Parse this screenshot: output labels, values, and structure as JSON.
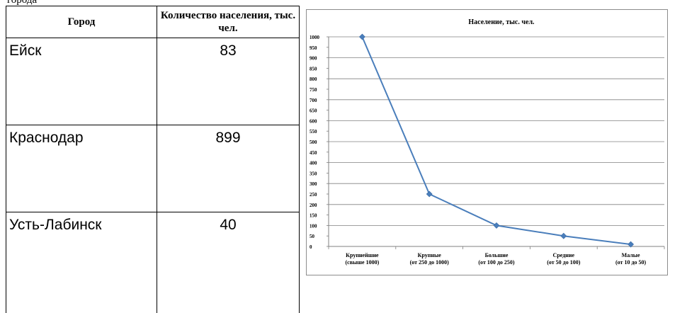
{
  "caption_fragment": "города",
  "table": {
    "headers": [
      "Город",
      "Количество населения, тыс. чел."
    ],
    "rows": [
      {
        "city": "Ейск",
        "population": "83"
      },
      {
        "city": "Краснодар",
        "population": "899"
      },
      {
        "city": "Усть-Лабинск",
        "population": "40"
      }
    ]
  },
  "chart_data": {
    "type": "line",
    "title": "Население, тыс. чел.",
    "categories": [
      [
        "Крупнейшие",
        "(свыше 1000)"
      ],
      [
        "Крупные",
        "(от 250 до 1000)"
      ],
      [
        "Большие",
        "(от 100 до 250)"
      ],
      [
        "Средние",
        "(от 50 до 100)"
      ],
      [
        "Малые",
        "(от 10 до 50)"
      ]
    ],
    "values": [
      1000,
      250,
      100,
      50,
      10
    ],
    "ylim": [
      0,
      1000
    ],
    "ytick_step": 50,
    "grid": "horizontal major lines every 100",
    "line_color": "#4a7ebb",
    "marker": "diamond",
    "legend": "none"
  }
}
